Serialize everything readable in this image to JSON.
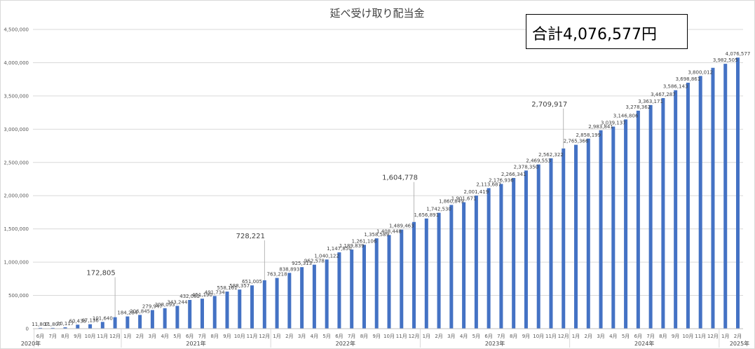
{
  "chart_data": {
    "type": "bar",
    "title": "延べ受け取り配当金",
    "ylim": [
      0,
      4500000
    ],
    "y_ticks": [
      "0",
      "500,000",
      "1,000,000",
      "1,500,000",
      "2,000,000",
      "2,500,000",
      "3,000,000",
      "3,500,000",
      "4,000,000",
      "4,500,000"
    ],
    "grid": true,
    "categories": [
      "6月",
      "7月",
      "8月",
      "9月",
      "10月",
      "11月",
      "12月",
      "1月",
      "2月",
      "3月",
      "4月",
      "5月",
      "6月",
      "7月",
      "8月",
      "9月",
      "10月",
      "11月",
      "12月",
      "1月",
      "2月",
      "3月",
      "4月",
      "5月",
      "6月",
      "7月",
      "8月",
      "9月",
      "10月",
      "11月",
      "12月",
      "1月",
      "2月",
      "3月",
      "4月",
      "5月",
      "6月",
      "7月",
      "8月",
      "9月",
      "10月",
      "11月",
      "12月",
      "1月",
      "2月",
      "3月",
      "4月",
      "5月",
      "6月",
      "7月",
      "8月",
      "9月",
      "10月",
      "11月",
      "12月",
      "1月",
      "2月"
    ],
    "years": [
      {
        "label": "2020年",
        "start": 0
      },
      {
        "label": "2021年",
        "start": 7
      },
      {
        "label": "2022年",
        "start": 19
      },
      {
        "label": "2023年",
        "start": 31
      },
      {
        "label": "2024年",
        "start": 43
      },
      {
        "label": "2025年",
        "start": 55
      }
    ],
    "values": [
      11807,
      11807,
      20117,
      60436,
      67136,
      101640,
      172805,
      184284,
      206845,
      279947,
      308093,
      343244,
      432082,
      451190,
      491734,
      558161,
      588357,
      651005,
      728221,
      763218,
      838893,
      925313,
      962578,
      1040122,
      1147850,
      1189839,
      1261106,
      1358589,
      1408448,
      1489463,
      1604778,
      1656891,
      1742530,
      1860849,
      1901671,
      2001419,
      2113687,
      2176936,
      2266341,
      2378350,
      2469553,
      2562322,
      2709917,
      2765366,
      2858199,
      2983841,
      3039137,
      3146806,
      3278362,
      3363171,
      3467287,
      3586143,
      3698861,
      3800012,
      3923000,
      3982505,
      4076577
    ],
    "labels": [
      "11,807",
      "11,807",
      "20,117",
      "60,436",
      "67,136",
      "101,640",
      "172,805",
      "184,284",
      "206,845",
      "279,947",
      "308,093",
      "343,244",
      "432,082",
      "451,190",
      "491,734",
      "558,161",
      "588,357",
      "651,005",
      "728,221",
      "763,218",
      "838,893",
      "925,313",
      "962,578",
      "1,040,122",
      "1,147,850",
      "1,189,839",
      "1,261,106",
      "1,358,589",
      "1,408,448",
      "1,489,463",
      "1,604,778",
      "1,656,891",
      "1,742,530",
      "1,860,849",
      "1,901,671",
      "2,001,419",
      "2,113,687",
      "2,176,936",
      "2,266,341",
      "2,378,350",
      "2,469,553",
      "2,562,322",
      "2,709,917",
      "2,765,366",
      "2,858,199",
      "2,983,841",
      "3,039,137",
      "3,146,806",
      "3,278,362",
      "3,363,171",
      "3,467,287",
      "3,586,143",
      "3,698,861",
      "3,800,012",
      "",
      "3,982,505",
      "4,076,577"
    ],
    "highlight_indices": [
      6,
      18,
      30,
      42
    ],
    "bar_color": "#4472c4"
  },
  "total_box": {
    "text": "合計4,076,577円"
  }
}
